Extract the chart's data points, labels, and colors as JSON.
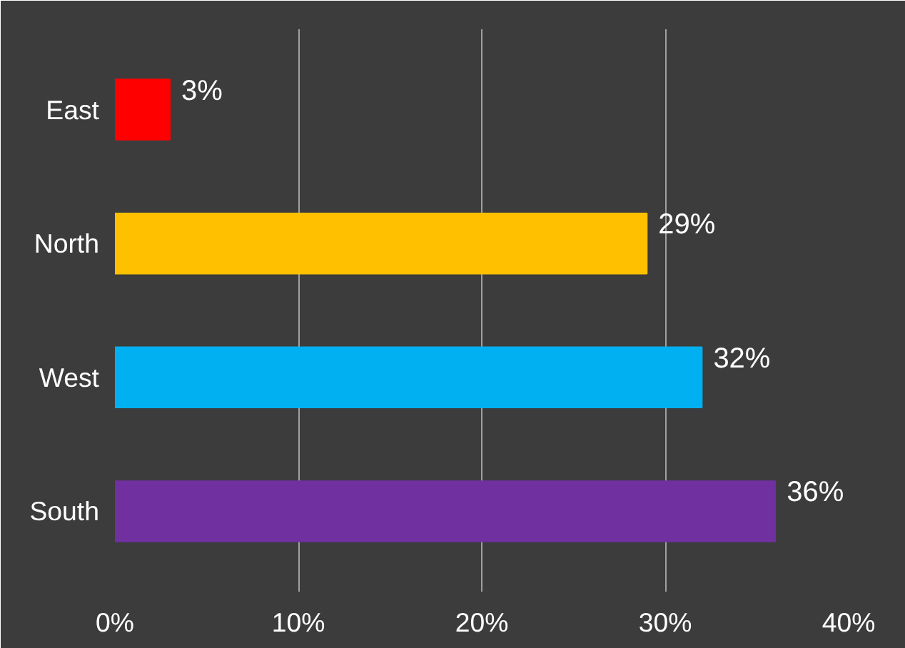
{
  "chart_data": {
    "type": "bar",
    "orientation": "horizontal",
    "categories": [
      "East",
      "North",
      "West",
      "South"
    ],
    "values": [
      3,
      29,
      32,
      36
    ],
    "colors": [
      "#ff0000",
      "#ffc000",
      "#00b0f0",
      "#7030a0"
    ],
    "value_labels": [
      "3%",
      "29%",
      "32%",
      "36%"
    ],
    "xlim": [
      0,
      40
    ],
    "xticks": [
      {
        "value": 0,
        "label": "0%"
      },
      {
        "value": 10,
        "label": "10%"
      },
      {
        "value": 20,
        "label": "20%"
      },
      {
        "value": 30,
        "label": "30%"
      },
      {
        "value": 40,
        "label": "40%"
      }
    ],
    "grid": "x"
  }
}
